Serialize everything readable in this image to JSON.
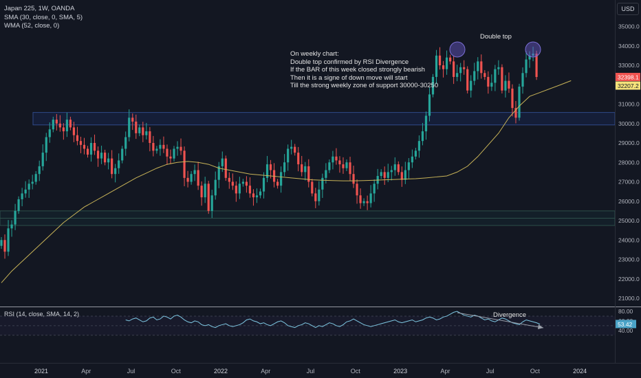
{
  "legend": {
    "symbol": "Japan 225, 1W, OANDA",
    "sma": "SMA (30, close, 0, SMA, 5)",
    "wma": "WMA (52, close, 0)"
  },
  "currency_button": "USD",
  "annotations": {
    "double_top": "Double top",
    "note_lines": [
      "On weekly chart:",
      "Double top confirmed by RSI Divergence",
      "If the BAR of this week closed strongly bearish",
      "Then it is a signe of down move will start",
      "Till the strong weekly zone of support 30000-30250"
    ],
    "divergence": "Divergence"
  },
  "price_badges": {
    "last": "32398.1",
    "wma": "32207.2",
    "rsi": "53.42"
  },
  "colors": {
    "background": "#131722",
    "bull": "#26a69a",
    "bear": "#ef5350",
    "wma_line": "#c9b458",
    "rsi_line": "#7ec8e3",
    "zone": "#2962ff"
  },
  "chart_data": [
    {
      "type": "candlestick",
      "title": "Japan 225, 1W, OANDA",
      "ylim": [
        20700,
        35800
      ],
      "y_ticks": [
        "35000.0",
        "34000.0",
        "33000.0",
        "32000.0",
        "31000.0",
        "30000.0",
        "29000.0",
        "28000.0",
        "27000.0",
        "26000.0",
        "25000.0",
        "24000.0",
        "23000.0",
        "22000.0",
        "21000.0"
      ],
      "x_ticks": [
        "2021",
        "Apr",
        "Jul",
        "Oct",
        "2022",
        "Apr",
        "Jul",
        "Oct",
        "2023",
        "Apr",
        "Jul",
        "Oct",
        "2024",
        "Apr"
      ],
      "x_ticks_weeks": [
        0,
        13,
        26,
        39,
        52,
        65,
        78,
        91,
        104,
        117,
        130,
        143,
        156,
        169
      ],
      "first_week": 0,
      "approx_closes": [
        24000,
        23400,
        24600,
        24800,
        25500,
        26100,
        26400,
        26600,
        26900,
        27000,
        27400,
        27800,
        28500,
        29300,
        29700,
        30200,
        30000,
        29800,
        29600,
        30200,
        29800,
        29400,
        29100,
        28900,
        28700,
        28400,
        29000,
        28600,
        28200,
        28500,
        28000,
        28200,
        27400,
        27700,
        28100,
        28700,
        29300,
        30300,
        30100,
        29500,
        29800,
        29400,
        29600,
        29000,
        28600,
        28700,
        28900,
        28700,
        28300,
        28200,
        28700,
        28800,
        28600,
        27200,
        27000,
        27400,
        27600,
        26800,
        26200,
        26900,
        25500,
        26300,
        27100,
        27800,
        28200,
        27200,
        27000,
        26800,
        26400,
        26900,
        27000,
        26800,
        26400,
        26200,
        26300,
        26500,
        27200,
        27900,
        27600,
        27000,
        26800,
        27500,
        28000,
        28700,
        28800,
        28500,
        27900,
        27500,
        27800,
        27000,
        26400,
        26000,
        26600,
        27200,
        27600,
        28000,
        28300,
        28100,
        27900,
        27700,
        28000,
        27400,
        26900,
        26300,
        25900,
        26000,
        25900,
        26400,
        26900,
        27300,
        27500,
        27200,
        27500,
        27600,
        27900,
        27500,
        27100,
        27600,
        28000,
        28300,
        28600,
        29100,
        29600,
        30400,
        31500,
        32400,
        33500,
        33000,
        32800,
        33400,
        33200,
        32400,
        32600,
        32900,
        32800,
        31700,
        32200,
        32700,
        33200,
        32600,
        32400,
        31900,
        32100,
        32800,
        32900,
        31700,
        32200,
        31800,
        30800,
        30300,
        31900,
        32600,
        33300,
        33500,
        33600,
        32398
      ],
      "sma30_series_name": "SMA (30, close, 0, SMA, 5)",
      "wma52_series_name": "WMA (52, close, 0)",
      "wma52_approx": [
        21800,
        22400,
        22900,
        23400,
        23900,
        24400,
        24900,
        25300,
        25700,
        26000,
        26300,
        26600,
        26900,
        27200,
        27450,
        27700,
        27900,
        28000,
        28050,
        28000,
        27900,
        27700,
        27600,
        27500,
        27400,
        27350,
        27300,
        27250,
        27200,
        27150,
        27100,
        27080,
        27060,
        27050,
        27050,
        27060,
        27080,
        27100,
        27120,
        27140,
        27160,
        27200,
        27250,
        27300,
        27500,
        27800,
        28300,
        28900,
        29500,
        30300,
        30900,
        31400,
        31600,
        31800,
        32000,
        32207
      ],
      "wma52_start_week": 0,
      "wma52_step_weeks": 3,
      "resistance_zone": [
        30000,
        30500
      ],
      "support_zone": [
        24750,
        25500
      ],
      "last_price": 32398.1,
      "wma_last": 32207.2
    },
    {
      "type": "line",
      "title": "RSI (14, close, SMA, 14, 2)",
      "ylim": [
        33,
        85
      ],
      "y_ticks": [
        "80.00",
        "60.00",
        "40.00"
      ],
      "values": [
        62,
        60,
        64,
        66,
        62,
        58,
        60,
        66,
        68,
        62,
        64,
        70,
        68,
        64,
        70,
        72,
        68,
        62,
        58,
        56,
        60,
        58,
        52,
        50,
        52,
        48,
        46,
        50,
        52,
        54,
        50,
        48,
        50,
        52,
        56,
        62,
        64,
        60,
        58,
        54,
        56,
        52,
        50,
        54,
        58,
        60,
        56,
        50,
        48,
        46,
        50,
        52,
        56,
        54,
        50,
        46,
        50,
        48,
        52,
        56,
        54,
        50,
        48,
        52,
        58,
        60,
        64,
        60,
        56,
        52,
        50,
        48,
        50,
        52,
        54,
        56,
        58,
        60,
        62,
        58,
        56,
        58,
        60,
        62,
        58,
        60,
        62,
        66,
        68,
        66,
        62,
        64,
        68,
        70,
        74,
        78,
        80,
        76,
        72,
        70,
        68,
        72,
        70,
        66,
        62,
        64,
        60,
        58,
        62,
        66,
        64,
        60,
        56,
        54,
        52,
        58,
        62,
        60,
        58,
        56,
        53
      ],
      "last_value": 53.42
    }
  ]
}
